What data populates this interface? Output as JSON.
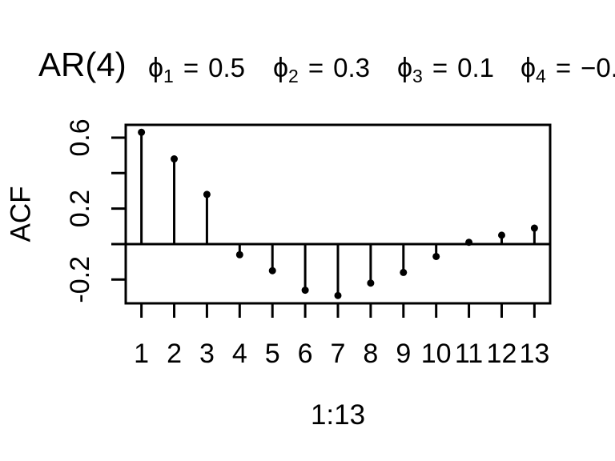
{
  "title": {
    "model": "AR(4)",
    "params": [
      {
        "symbol": "ϕ",
        "sub": "1",
        "eq": "=",
        "value": "0.5"
      },
      {
        "symbol": "ϕ",
        "sub": "2",
        "eq": "=",
        "value": "0.3"
      },
      {
        "symbol": "ϕ",
        "sub": "3",
        "eq": "=",
        "value": "0.1"
      },
      {
        "symbol": "ϕ",
        "sub": "4",
        "eq": "=",
        "value": "−0."
      }
    ]
  },
  "chart_data": {
    "type": "scatter",
    "variant": "stem",
    "title": "AR(4)  ϕ1 = 0.5  ϕ2 = 0.3  ϕ3 = 0.1  ϕ4 = −0.",
    "xlabel": "1:13",
    "ylabel": "ACF",
    "x": [
      1,
      2,
      3,
      4,
      5,
      6,
      7,
      8,
      9,
      10,
      11,
      12,
      13
    ],
    "values": [
      0.63,
      0.48,
      0.28,
      -0.06,
      -0.15,
      -0.26,
      -0.29,
      -0.22,
      -0.16,
      -0.07,
      0.01,
      0.05,
      0.09
    ],
    "xtick_labels": [
      "1",
      "2",
      "3",
      "4",
      "5",
      "6",
      "7",
      "8",
      "9",
      "10",
      "11",
      "12",
      "13"
    ],
    "yticks": [
      {
        "value": 0.6,
        "label": "0.6"
      },
      {
        "value": 0.4,
        "label": ""
      },
      {
        "value": 0.2,
        "label": "0.2"
      },
      {
        "value": 0.0,
        "label": ""
      },
      {
        "value": -0.2,
        "label": "-0.2"
      }
    ],
    "xlim": [
      0.52,
      13.48
    ],
    "ylim": [
      -0.33,
      0.67
    ],
    "zero_line": true,
    "grid": false,
    "legend": null,
    "colors": {
      "points": "#000000",
      "lines": "#000000",
      "background": "#ffffff"
    }
  }
}
